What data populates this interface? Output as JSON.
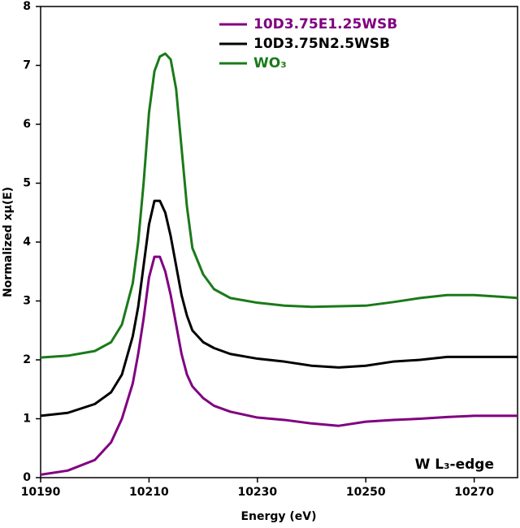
{
  "chart_data": {
    "type": "line",
    "x_label": "Energy (eV)",
    "y_label": "Normalized xμ(E)",
    "annotation": "W L₃-edge",
    "x": [
      10190,
      10195,
      10200,
      10203,
      10205,
      10207,
      10208,
      10209,
      10210,
      10211,
      10212,
      10213,
      10214,
      10215,
      10216,
      10217,
      10218,
      10220,
      10222,
      10225,
      10230,
      10235,
      10240,
      10245,
      10250,
      10255,
      10260,
      10265,
      10270,
      10275,
      10278
    ],
    "series": [
      {
        "name": "10D3.75E1.25WSB",
        "color": "#800080",
        "values": [
          0.05,
          0.12,
          0.3,
          0.6,
          1.0,
          1.6,
          2.1,
          2.7,
          3.4,
          3.75,
          3.75,
          3.5,
          3.1,
          2.6,
          2.1,
          1.75,
          1.55,
          1.35,
          1.22,
          1.12,
          1.02,
          0.98,
          0.92,
          0.88,
          0.95,
          0.98,
          1.0,
          1.03,
          1.05,
          1.05,
          1.05
        ]
      },
      {
        "name": "10D3.75N2.5WSB",
        "color": "#000000",
        "values": [
          1.05,
          1.1,
          1.25,
          1.45,
          1.75,
          2.4,
          2.9,
          3.6,
          4.3,
          4.7,
          4.7,
          4.5,
          4.1,
          3.6,
          3.1,
          2.75,
          2.5,
          2.3,
          2.2,
          2.1,
          2.02,
          1.97,
          1.9,
          1.87,
          1.9,
          1.97,
          2.0,
          2.05,
          2.05,
          2.05,
          2.05
        ]
      },
      {
        "name": "WO₃",
        "color": "#1a7a1a",
        "values": [
          2.04,
          2.07,
          2.15,
          2.3,
          2.6,
          3.3,
          4.0,
          5.0,
          6.2,
          6.9,
          7.15,
          7.2,
          7.1,
          6.6,
          5.6,
          4.6,
          3.9,
          3.45,
          3.2,
          3.05,
          2.97,
          2.92,
          2.9,
          2.91,
          2.92,
          2.98,
          3.05,
          3.1,
          3.1,
          3.07,
          3.05
        ]
      }
    ],
    "xlim": [
      10190,
      10278
    ],
    "xticks": [
      10190,
      10210,
      10230,
      10250,
      10270
    ],
    "ylim": [
      0,
      8
    ],
    "yticks": [
      0,
      1,
      2,
      3,
      4,
      5,
      6,
      7,
      8
    ]
  }
}
